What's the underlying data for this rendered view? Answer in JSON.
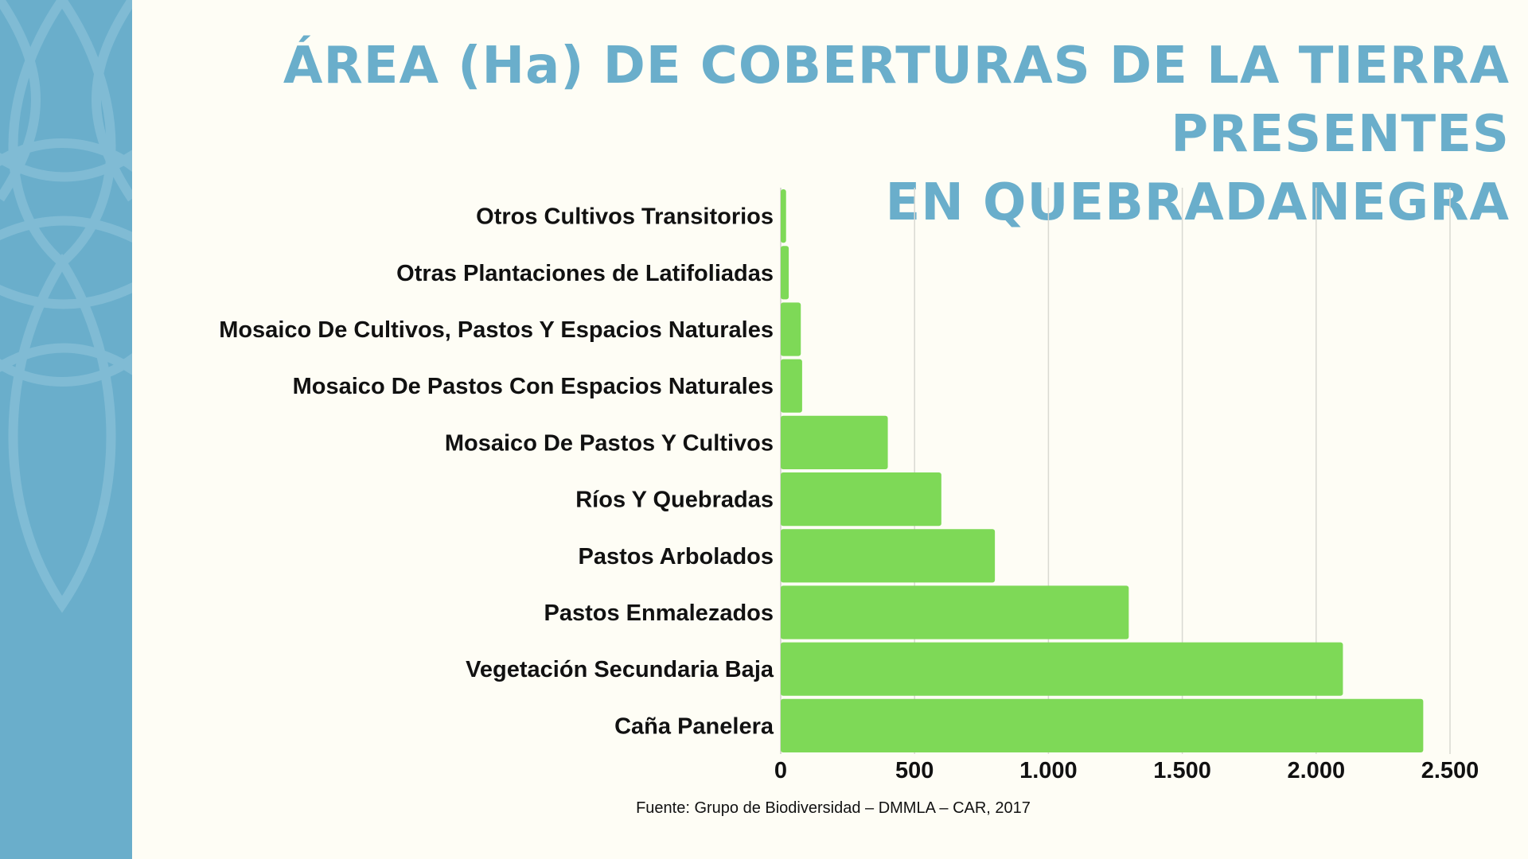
{
  "title_line1": "ÁREA (Ha) DE COBERTURAS DE LA TIERRA PRESENTES",
  "title_line2": "EN QUEBRADANEGRA",
  "source": "Fuente: Grupo de Biodiversidad – DMMLA – CAR, 2017",
  "colors": {
    "bar": "#7ed957",
    "title": "#6aaecb",
    "side_panel": "#6aaecb",
    "background": "#fefdf5"
  },
  "chart_data": {
    "type": "bar",
    "orientation": "horizontal",
    "categories": [
      "Otros Cultivos Transitorios",
      "Otras Plantaciones de Latifoliadas",
      "Mosaico De Cultivos, Pastos Y Espacios Naturales",
      "Mosaico De Pastos Con Espacios Naturales",
      "Mosaico De Pastos Y Cultivos",
      "Ríos Y Quebradas",
      "Pastos Arbolados",
      "Pastos Enmalezados",
      "Vegetación Secundaria Baja",
      "Caña Panelera"
    ],
    "values": [
      20,
      30,
      75,
      80,
      400,
      600,
      800,
      1300,
      2100,
      2400
    ],
    "xlim": [
      0,
      2500
    ],
    "xticks": [
      0,
      500,
      1000,
      1500,
      2000,
      2500
    ],
    "xtick_labels": [
      "0",
      "500",
      "1.000",
      "1.500",
      "2.000",
      "2.500"
    ],
    "grid": "vertical",
    "legend": "none"
  }
}
